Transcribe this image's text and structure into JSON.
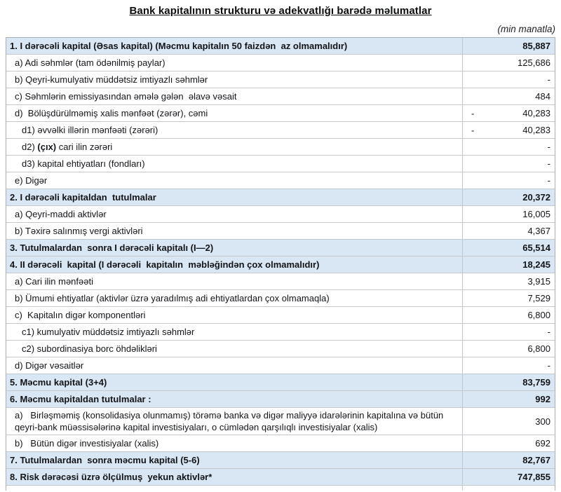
{
  "page": {
    "title": "Bank kapitalının strukturu və adekvatlığı barədə məlumatlar",
    "unit_note": "(min manatla)"
  },
  "colors": {
    "section_row_bg": "#d9e7f5",
    "border": "#c3c7cc",
    "outer_border": "#a9aeb5",
    "text": "#121417"
  },
  "table": {
    "rows": [
      {
        "section": true,
        "indent": 0,
        "parts": [
          {
            "t": "1. I dərəcəli kapital",
            "b": true
          },
          {
            "t": " (Əsas kapital) (Məcmu kapitalın 50 faizdən  az olmamalıdır)",
            "b": false
          }
        ],
        "value": "85,887"
      },
      {
        "indent": 1,
        "parts": [
          {
            "t": "a) Adi səhmlər (tam ödənilmiş paylar)",
            "b": false
          }
        ],
        "value": "125,686"
      },
      {
        "indent": 1,
        "parts": [
          {
            "t": "b) Qeyri-kumulyativ müddətsiz imtiyazlı səhmlər",
            "b": false
          }
        ],
        "value": "-"
      },
      {
        "indent": 1,
        "parts": [
          {
            "t": "c) Səhmlərin emissiyasından əmələ gələn  əlavə vəsait",
            "b": false
          }
        ],
        "value": "484"
      },
      {
        "indent": 1,
        "parts": [
          {
            "t": "d)  Bölüşdürülməmiş xalis mənfəət (zərər), cəmi",
            "b": false
          }
        ],
        "value": "40,283",
        "negative": true,
        "neg_sign": "-"
      },
      {
        "indent": 2,
        "parts": [
          {
            "t": "d1) əvvəlki illərin mənfəəti (zərəri)",
            "b": false
          }
        ],
        "value": "40,283",
        "negative": true,
        "neg_sign": "-"
      },
      {
        "indent": 2,
        "parts": [
          {
            "t": "d2) ",
            "b": false
          },
          {
            "t": "(çıx)",
            "b": true
          },
          {
            "t": " cari ilin zərəri",
            "b": false
          }
        ],
        "value": "-"
      },
      {
        "indent": 2,
        "parts": [
          {
            "t": "d3) kapital ehtiyatları (fondları)",
            "b": false
          }
        ],
        "value": "-"
      },
      {
        "indent": 1,
        "parts": [
          {
            "t": "e) Digər",
            "b": false
          }
        ],
        "value": "-"
      },
      {
        "section": true,
        "indent": 0,
        "parts": [
          {
            "t": "2. I dərəcəli kapitaldan  tutulmalar",
            "b": true
          }
        ],
        "value": "20,372"
      },
      {
        "indent": 1,
        "parts": [
          {
            "t": "a) Qeyri-maddi aktivlər",
            "b": false
          }
        ],
        "value": "16,005"
      },
      {
        "indent": 1,
        "parts": [
          {
            "t": "b) Təxirə salınmış vergi aktivləri",
            "b": false
          }
        ],
        "value": "4,367"
      },
      {
        "section": true,
        "indent": 0,
        "parts": [
          {
            "t": "3. Tutulmalardan  sonra I dərəcəli kapitalı (I—2)",
            "b": true
          }
        ],
        "value": "65,514"
      },
      {
        "section": true,
        "indent": 0,
        "parts": [
          {
            "t": "4. II dərəcəli  kapital",
            "b": true
          },
          {
            "t": " (I dərəcəli  kapitalın  məbləğindən çox olmamalıdır)",
            "b": false
          }
        ],
        "value": "18,245"
      },
      {
        "indent": 1,
        "parts": [
          {
            "t": "a) Cari ilin mənfəəti",
            "b": false
          }
        ],
        "value": "3,915"
      },
      {
        "indent": 1,
        "parts": [
          {
            "t": "b) Ümumi ehtiyatlar (aktivlər üzrə yaradılmış adi ehtiyatlardan çox olmamaqla)",
            "b": false
          }
        ],
        "value": "7,529"
      },
      {
        "indent": 1,
        "parts": [
          {
            "t": "c)  Kapitalın digər komponentləri",
            "b": false
          }
        ],
        "value": "6,800"
      },
      {
        "indent": 2,
        "parts": [
          {
            "t": "c1) kumulyativ müddətsiz imtiyazlı səhmlər",
            "b": false
          }
        ],
        "value": "-"
      },
      {
        "indent": 2,
        "parts": [
          {
            "t": "c2) subordinasiya borc öhdəlikləri",
            "b": false
          }
        ],
        "value": "6,800"
      },
      {
        "indent": 1,
        "parts": [
          {
            "t": "d) Digər vəsaitlər",
            "b": false
          }
        ],
        "value": "-"
      },
      {
        "section": true,
        "indent": 0,
        "parts": [
          {
            "t": "5. Məcmu kapital (3+4)",
            "b": true
          }
        ],
        "value": "83,759"
      },
      {
        "section": true,
        "indent": 0,
        "parts": [
          {
            "t": "6. Məcmu kapitaldan tutulmalar :",
            "b": true
          }
        ],
        "value": "992"
      },
      {
        "indent": 1,
        "tall": true,
        "parts": [
          {
            "t": "a)   Birləşməmiş (konsolidasiya olunmamış) törəmə banka və digər maliyyə idarələrinin kapitalına və bütün qeyri-bank müəssisələrinə kapital investisiyaları, o cümlədən qarşılıqlı investisiyalar (xalis)",
            "b": false
          }
        ],
        "value": "300"
      },
      {
        "indent": 1,
        "parts": [
          {
            "t": "b)   Bütün digər investisiyalar (xalis)",
            "b": false
          }
        ],
        "value": "692"
      },
      {
        "section": true,
        "indent": 0,
        "parts": [
          {
            "t": "7. Tutulmalardan  sonra məcmu kapital (5-6)",
            "b": true
          }
        ],
        "value": "82,767"
      },
      {
        "section": true,
        "indent": 0,
        "parts": [
          {
            "t": "8. Risk dərəcəsi üzrə ölçülmuş  yekun aktivlər*",
            "b": true
          }
        ],
        "value": "747,855"
      },
      {
        "partial": true,
        "indent": 0,
        "parts": [],
        "value": ""
      }
    ]
  }
}
